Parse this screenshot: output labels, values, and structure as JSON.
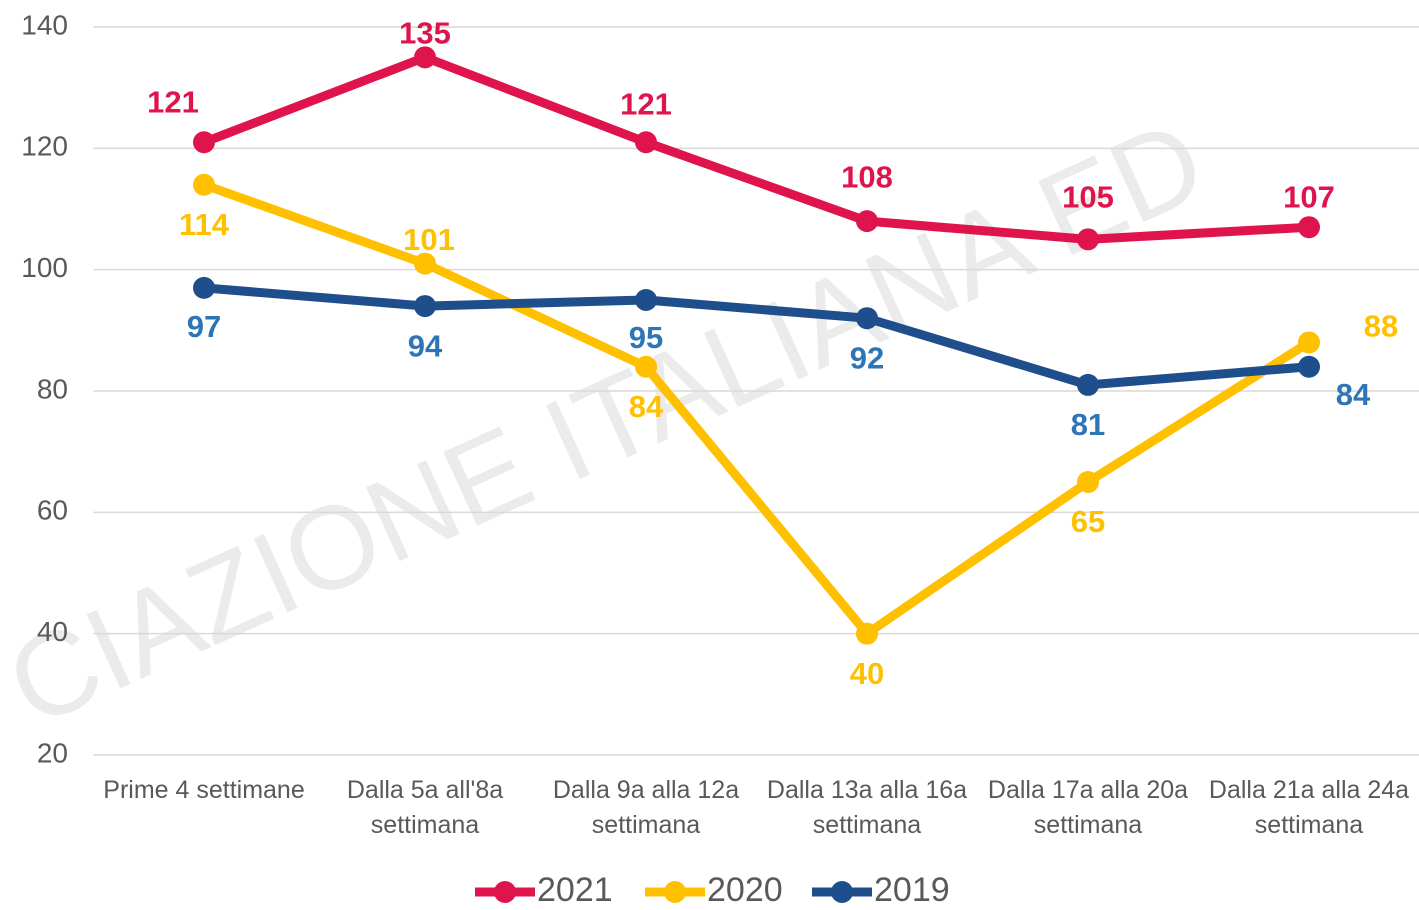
{
  "chart_data": {
    "type": "line",
    "watermark": "CIAZIONE ITALIANA ED",
    "categories": [
      "Prime 4 settimane",
      "Dalla 5a all'8a settimana",
      "Dalla 9a alla 12a settimana",
      "Dalla 13a alla 16a settimana",
      "Dalla 17a alla 20a settimana",
      "Dalla 21a alla 24a settimana"
    ],
    "series": [
      {
        "name": "2021",
        "color": "#e0144c",
        "label_color": "#e0144c",
        "values": [
          121,
          135,
          121,
          108,
          105,
          107
        ]
      },
      {
        "name": "2020",
        "color": "#ffc000",
        "label_color": "#ffc000",
        "values": [
          114,
          101,
          84,
          40,
          65,
          88
        ]
      },
      {
        "name": "2019",
        "color": "#1f4e8c",
        "label_color": "#2e75b6",
        "values": [
          97,
          94,
          95,
          92,
          81,
          84
        ]
      }
    ],
    "ylim": [
      20,
      140
    ],
    "yticks": [
      20,
      40,
      60,
      80,
      100,
      120,
      140
    ],
    "grid": true,
    "legend": "bottom"
  }
}
